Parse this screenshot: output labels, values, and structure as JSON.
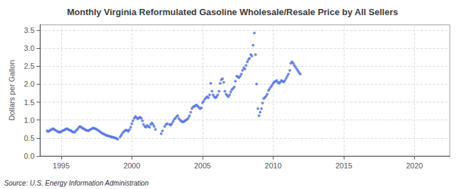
{
  "chart_data": {
    "type": "scatter",
    "title": "Monthly Virginia Reformulated Gasoline Wholesale/Resale Price by All Sellers",
    "ylabel": "Dollars per Gallon",
    "annotations": [
      "Source: U.S. Energy Information Administration"
    ],
    "x": [
      1994.0,
      1994.08,
      1994.17,
      1994.25,
      1994.33,
      1994.42,
      1994.5,
      1994.58,
      1994.67,
      1994.75,
      1994.83,
      1994.92,
      1995.0,
      1995.08,
      1995.17,
      1995.25,
      1995.33,
      1995.42,
      1995.5,
      1995.58,
      1995.67,
      1995.75,
      1995.83,
      1995.92,
      1996.0,
      1996.08,
      1996.17,
      1996.25,
      1996.33,
      1996.42,
      1996.5,
      1996.58,
      1996.67,
      1996.75,
      1996.83,
      1996.92,
      1997.0,
      1997.08,
      1997.17,
      1997.25,
      1997.33,
      1997.42,
      1997.5,
      1997.58,
      1997.67,
      1997.75,
      1997.83,
      1997.92,
      1998.0,
      1998.08,
      1998.17,
      1998.25,
      1998.33,
      1998.42,
      1998.5,
      1998.58,
      1998.67,
      1998.75,
      1998.83,
      1998.92,
      1999.0,
      1999.17,
      1999.25,
      1999.33,
      1999.42,
      1999.5,
      1999.58,
      1999.67,
      1999.75,
      1999.83,
      1999.92,
      2000.0,
      2000.08,
      2000.17,
      2000.25,
      2000.33,
      2000.42,
      2000.5,
      2000.58,
      2000.67,
      2000.75,
      2000.83,
      2000.92,
      2001.0,
      2001.08,
      2001.17,
      2001.25,
      2001.33,
      2001.42,
      2001.5,
      2001.58,
      2001.67,
      2002.08,
      2002.17,
      2002.33,
      2002.42,
      2002.5,
      2002.67,
      2002.75,
      2002.83,
      2002.92,
      2003.0,
      2003.08,
      2003.17,
      2003.25,
      2003.33,
      2003.42,
      2003.5,
      2003.58,
      2003.67,
      2003.75,
      2003.83,
      2003.92,
      2004.0,
      2004.08,
      2004.17,
      2004.25,
      2004.33,
      2004.42,
      2004.5,
      2004.58,
      2004.67,
      2004.75,
      2004.83,
      2004.92,
      2005.0,
      2005.08,
      2005.17,
      2005.25,
      2005.33,
      2005.42,
      2005.5,
      2005.58,
      2005.67,
      2005.75,
      2005.83,
      2005.92,
      2006.0,
      2006.08,
      2006.17,
      2006.25,
      2006.33,
      2006.42,
      2006.5,
      2006.58,
      2006.67,
      2006.75,
      2006.83,
      2006.92,
      2007.0,
      2007.08,
      2007.17,
      2007.25,
      2007.33,
      2007.42,
      2007.5,
      2007.58,
      2007.67,
      2007.75,
      2007.83,
      2007.92,
      2008.0,
      2008.08,
      2008.17,
      2008.25,
      2008.33,
      2008.42,
      2008.5,
      2008.58,
      2008.67,
      2008.75,
      2008.83,
      2008.92,
      2009.0,
      2009.08,
      2009.17,
      2009.25,
      2009.33,
      2009.42,
      2009.5,
      2009.58,
      2009.67,
      2009.75,
      2009.83,
      2009.92,
      2010.0,
      2010.08,
      2010.17,
      2010.25,
      2010.33,
      2010.42,
      2010.5,
      2010.58,
      2010.67,
      2010.75,
      2010.83,
      2010.92,
      2011.0,
      2011.08,
      2011.17,
      2011.25,
      2011.33,
      2011.42,
      2011.5,
      2011.58,
      2011.67,
      2011.75,
      2011.83,
      2011.92
    ],
    "values": [
      0.7,
      0.68,
      0.7,
      0.72,
      0.74,
      0.76,
      0.74,
      0.72,
      0.7,
      0.68,
      0.67,
      0.66,
      0.68,
      0.7,
      0.71,
      0.73,
      0.75,
      0.76,
      0.74,
      0.72,
      0.71,
      0.69,
      0.67,
      0.66,
      0.68,
      0.72,
      0.75,
      0.8,
      0.82,
      0.8,
      0.78,
      0.76,
      0.74,
      0.72,
      0.71,
      0.7,
      0.72,
      0.74,
      0.76,
      0.78,
      0.77,
      0.76,
      0.74,
      0.72,
      0.7,
      0.68,
      0.65,
      0.63,
      0.61,
      0.6,
      0.58,
      0.57,
      0.56,
      0.55,
      0.54,
      0.53,
      0.52,
      0.51,
      0.5,
      0.49,
      0.47,
      0.53,
      0.58,
      0.63,
      0.67,
      0.7,
      0.72,
      0.71,
      0.69,
      0.73,
      0.8,
      0.9,
      0.98,
      1.05,
      1.1,
      1.07,
      1.03,
      1.06,
      1.08,
      1.05,
      0.98,
      0.88,
      0.82,
      0.8,
      0.85,
      0.82,
      0.8,
      0.88,
      0.92,
      0.88,
      0.82,
      0.74,
      0.62,
      0.7,
      0.82,
      0.88,
      0.9,
      0.88,
      0.86,
      0.9,
      0.96,
      1.02,
      1.05,
      1.1,
      1.12,
      1.04,
      1.0,
      0.97,
      0.95,
      0.95,
      0.98,
      1.0,
      1.02,
      1.06,
      1.12,
      1.22,
      1.32,
      1.36,
      1.38,
      1.4,
      1.42,
      1.38,
      1.35,
      1.32,
      1.34,
      1.48,
      1.52,
      1.58,
      1.62,
      1.65,
      1.62,
      1.7,
      2.02,
      1.8,
      1.7,
      1.65,
      1.62,
      1.65,
      1.7,
      1.8,
      2.02,
      2.12,
      2.15,
      2.05,
      1.8,
      1.72,
      1.68,
      1.65,
      1.7,
      1.78,
      1.85,
      1.88,
      1.92,
      2.08,
      2.22,
      2.2,
      2.18,
      2.22,
      2.28,
      2.38,
      2.45,
      2.42,
      2.52,
      2.62,
      2.68,
      2.72,
      2.82,
      2.78,
      3.08,
      3.42,
      2.82,
      2.0,
      1.32,
      1.12,
      1.22,
      1.32,
      1.47,
      1.6,
      1.63,
      1.67,
      1.72,
      1.82,
      1.87,
      1.92,
      1.97,
      2.02,
      2.06,
      2.08,
      2.1,
      2.05,
      2.02,
      2.06,
      2.1,
      2.08,
      2.06,
      2.1,
      2.16,
      2.22,
      2.28,
      2.38,
      2.58,
      2.62,
      2.58,
      2.52,
      2.47,
      2.42,
      2.37,
      2.32,
      2.28
    ],
    "xlim": [
      1993.5,
      2022.5
    ],
    "xticks": [
      1995,
      2000,
      2005,
      2010,
      2015,
      2020
    ],
    "ylim": [
      0.0,
      3.65
    ],
    "yticks": [
      {
        "value": 0.0,
        "label": "0.0"
      },
      0.5,
      {
        "value": 1.0,
        "label": "1.0"
      },
      1.5,
      {
        "value": 2.0,
        "label": "2.0"
      },
      2.5,
      {
        "value": 3.0,
        "label": "3.0"
      },
      3.5
    ],
    "grid": true
  }
}
